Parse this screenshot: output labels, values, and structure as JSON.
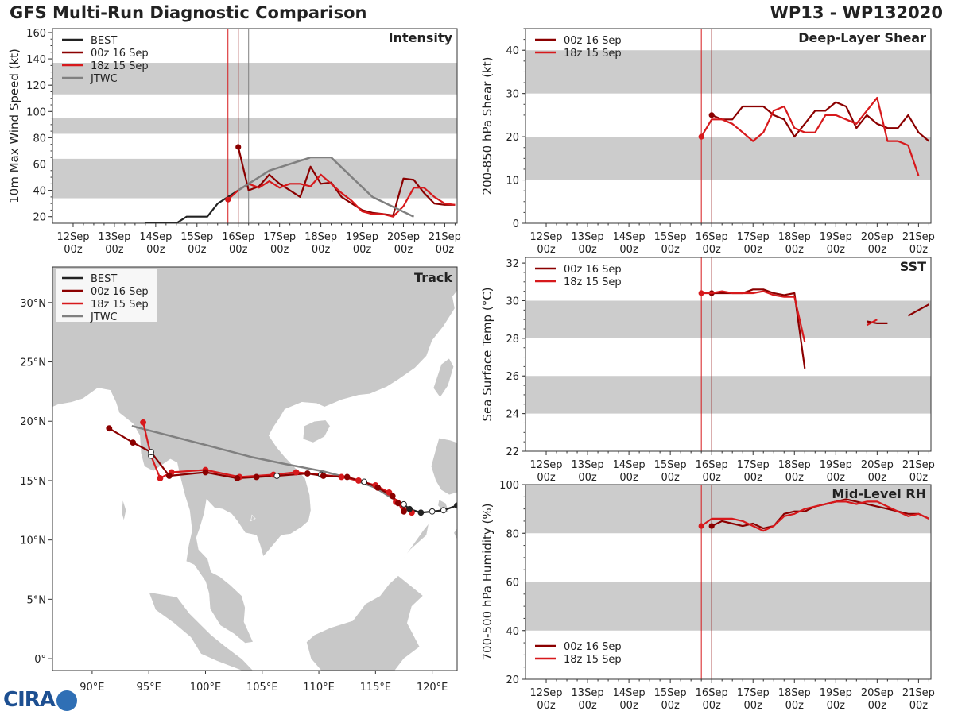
{
  "header": {
    "left_title": "GFS Multi-Run Diagnostic Comparison",
    "right_title": "WP13 - WP132020"
  },
  "logo_text": "CIRA",
  "colors": {
    "best": "#222222",
    "run00": "#8b0000",
    "run18": "#d7191c",
    "jtwc": "#808080",
    "band": "#cccccc",
    "land": "#c8c8c8"
  },
  "time_ticks": [
    "12Sep\n00z",
    "13Sep\n00z",
    "14Sep\n00z",
    "15Sep\n00z",
    "16Sep\n00z",
    "17Sep\n00z",
    "18Sep\n00z",
    "19Sep\n00z",
    "20Sep\n00z",
    "21Sep\n00z"
  ],
  "chart_data": [
    {
      "id": "intensity",
      "type": "line",
      "title": "Intensity",
      "ylabel": "10m Max Wind Speed (kt)",
      "ylim": [
        15,
        163
      ],
      "yticks": [
        20,
        40,
        60,
        80,
        100,
        120,
        140,
        160
      ],
      "xlim": [
        11.5,
        21.3
      ],
      "bands": [
        [
          34,
          64
        ],
        [
          83,
          95
        ],
        [
          113,
          137
        ]
      ],
      "vlines": [
        {
          "x": 15.75,
          "series": "run18"
        },
        {
          "x": 16.0,
          "series": "run00"
        },
        {
          "x": 16.25,
          "series": "jtwc"
        }
      ],
      "legend": [
        "BEST",
        "00z 16 Sep",
        "18z 15 Sep",
        "JTWC"
      ],
      "series": [
        {
          "key": "best",
          "name": "BEST",
          "x": [
            13.75,
            14.5,
            14.75,
            15.25,
            15.5,
            16.0
          ],
          "y": [
            15,
            15,
            20,
            20,
            30,
            40
          ]
        },
        {
          "key": "run00",
          "name": "00z 16 Sep",
          "marker": 16.0,
          "x": [
            16.0,
            16.25,
            16.5,
            16.75,
            17.0,
            17.25,
            17.5,
            17.75,
            18.0,
            18.25,
            18.5,
            18.75,
            19.0,
            19.25,
            19.5,
            19.75,
            20.0,
            20.25,
            20.5,
            20.75,
            21.0,
            21.25
          ],
          "y": [
            73,
            40,
            43,
            52,
            45,
            40,
            35,
            58,
            45,
            46,
            35,
            30,
            25,
            23,
            22,
            21,
            49,
            48,
            38,
            30,
            29,
            29
          ]
        },
        {
          "key": "run18",
          "name": "18z 15 Sep",
          "marker": 15.75,
          "x": [
            15.75,
            16.0,
            16.25,
            16.5,
            16.75,
            17.0,
            17.25,
            17.5,
            17.75,
            18.0,
            18.25,
            18.5,
            18.75,
            19.0,
            19.25,
            19.5,
            19.75,
            20.0,
            20.25,
            20.5,
            20.75,
            21.0,
            21.25
          ],
          "y": [
            33,
            40,
            45,
            42,
            47,
            42,
            45,
            45,
            43,
            52,
            45,
            38,
            32,
            24,
            22,
            22,
            20,
            28,
            42,
            42,
            35,
            30,
            29
          ]
        },
        {
          "key": "jtwc",
          "name": "JTWC",
          "x": [
            16.0,
            16.75,
            17.75,
            18.25,
            18.75,
            19.25,
            20.25
          ],
          "y": [
            40,
            55,
            65,
            65,
            50,
            35,
            20
          ]
        }
      ]
    },
    {
      "id": "shear",
      "type": "line",
      "title": "Deep-Layer Shear",
      "ylabel": "200-850 hPa Shear (kt)",
      "ylim": [
        0,
        45
      ],
      "yticks": [
        0,
        10,
        20,
        30,
        40
      ],
      "xlim": [
        11.5,
        21.3
      ],
      "bands": [
        [
          10,
          20
        ],
        [
          30,
          40
        ]
      ],
      "vlines": [
        {
          "x": 15.75,
          "series": "run18"
        },
        {
          "x": 16.0,
          "series": "run00"
        }
      ],
      "legend": [
        "00z 16 Sep",
        "18z 15 Sep"
      ],
      "series": [
        {
          "key": "run00",
          "name": "00z 16 Sep",
          "marker": 16.0,
          "x": [
            16.0,
            16.25,
            16.5,
            16.75,
            17.0,
            17.25,
            17.5,
            17.75,
            18.0,
            18.25,
            18.5,
            18.75,
            19.0,
            19.25,
            19.5,
            19.75,
            20.0,
            20.25,
            20.5,
            20.75,
            21.0,
            21.25
          ],
          "y": [
            25,
            24,
            24,
            27,
            27,
            27,
            25,
            24,
            20,
            23,
            26,
            26,
            28,
            27,
            22,
            25,
            23,
            22,
            22,
            25,
            21,
            19
          ]
        },
        {
          "key": "run18",
          "name": "18z 15 Sep",
          "marker": 15.75,
          "x": [
            15.75,
            16.0,
            16.25,
            16.5,
            16.75,
            17.0,
            17.25,
            17.5,
            17.75,
            18.0,
            18.25,
            18.5,
            18.75,
            19.0,
            19.25,
            19.5,
            19.75,
            20.0,
            20.25,
            20.5,
            20.75,
            21.0,
            21.25
          ],
          "y": [
            20,
            24,
            24,
            23,
            21,
            19,
            21,
            26,
            27,
            22,
            21,
            21,
            25,
            25,
            24,
            23,
            26,
            29,
            19,
            19,
            18,
            11,
            null
          ]
        }
      ]
    },
    {
      "id": "sst",
      "type": "line",
      "title": "SST",
      "ylabel": "Sea Surface Temp (°C)",
      "ylim": [
        22,
        32.3
      ],
      "yticks": [
        22,
        24,
        26,
        28,
        30,
        32
      ],
      "xlim": [
        11.5,
        21.3
      ],
      "bands": [
        [
          24,
          26
        ],
        [
          28,
          30
        ]
      ],
      "vlines": [
        {
          "x": 15.75,
          "series": "run18"
        },
        {
          "x": 16.0,
          "series": "run00"
        }
      ],
      "legend": [
        "00z 16 Sep",
        "18z 15 Sep"
      ],
      "series": [
        {
          "key": "run00",
          "name": "00z 16 Sep",
          "marker": 16.0,
          "segments": [
            {
              "x": [
                16.0,
                16.25,
                16.5,
                16.75,
                17.0,
                17.25,
                17.5,
                17.75,
                18.0,
                18.25
              ],
              "y": [
                30.4,
                30.4,
                30.4,
                30.4,
                30.6,
                30.6,
                30.4,
                30.3,
                30.4,
                26.4
              ]
            },
            {
              "x": [
                19.75,
                20.0,
                20.25
              ],
              "y": [
                28.9,
                28.8,
                28.8
              ]
            },
            {
              "x": [
                20.75,
                21.0,
                21.25
              ],
              "y": [
                29.2,
                29.5,
                29.8
              ]
            }
          ]
        },
        {
          "key": "run18",
          "name": "18z 15 Sep",
          "marker": 15.75,
          "segments": [
            {
              "x": [
                15.75,
                16.0,
                16.25,
                16.5,
                16.75,
                17.0,
                17.25,
                17.5,
                17.75,
                18.0,
                18.25
              ],
              "y": [
                30.4,
                30.4,
                30.5,
                30.4,
                30.4,
                30.4,
                30.5,
                30.3,
                30.2,
                30.2,
                27.8
              ]
            },
            {
              "x": [
                19.75,
                20.0
              ],
              "y": [
                28.7,
                29.0
              ]
            }
          ]
        }
      ]
    },
    {
      "id": "rh",
      "type": "line",
      "title": "Mid-Level RH",
      "ylabel": "700-500 hPa Humidity (%)",
      "ylim": [
        20,
        100
      ],
      "yticks": [
        20,
        40,
        60,
        80,
        100
      ],
      "xlim": [
        11.5,
        21.3
      ],
      "bands": [
        [
          40,
          60
        ],
        [
          80,
          100
        ]
      ],
      "vlines": [
        {
          "x": 15.75,
          "series": "run18"
        },
        {
          "x": 16.0,
          "series": "run00"
        }
      ],
      "legend": [
        "00z 16 Sep",
        "18z 15 Sep"
      ],
      "legend_position": "bottom-left",
      "series": [
        {
          "key": "run00",
          "name": "00z 16 Sep",
          "marker": 16.0,
          "x": [
            16.0,
            16.25,
            16.5,
            16.75,
            17.0,
            17.25,
            17.5,
            17.75,
            18.0,
            18.25,
            18.5,
            18.75,
            19.0,
            19.25,
            19.5,
            19.75,
            20.0,
            20.25,
            20.5,
            20.75,
            21.0,
            21.25
          ],
          "y": [
            83,
            85,
            84,
            83,
            84,
            82,
            83,
            88,
            89,
            89,
            91,
            92,
            93,
            94,
            93,
            92,
            91,
            90,
            89,
            88,
            88,
            86
          ]
        },
        {
          "key": "run18",
          "name": "18z 15 Sep",
          "marker": 15.75,
          "x": [
            15.75,
            16.0,
            16.25,
            16.5,
            16.75,
            17.0,
            17.25,
            17.5,
            17.75,
            18.0,
            18.25,
            18.5,
            18.75,
            19.0,
            19.25,
            19.5,
            19.75,
            20.0,
            20.25,
            20.5,
            20.75,
            21.0,
            21.25
          ],
          "y": [
            83,
            86,
            86,
            86,
            85,
            83,
            81,
            83,
            87,
            88,
            90,
            91,
            92,
            93,
            93,
            92,
            93,
            93,
            91,
            89,
            87,
            88,
            86
          ]
        }
      ]
    },
    {
      "id": "track",
      "type": "scatter",
      "title": "Track",
      "xlim": [
        86.5,
        122.2
      ],
      "ylim": [
        -1,
        33
      ],
      "xticks": [
        90,
        95,
        100,
        105,
        110,
        115,
        120
      ],
      "xtick_labels": [
        "90°E",
        "95°E",
        "100°E",
        "105°E",
        "110°E",
        "115°E",
        "120°E"
      ],
      "yticks": [
        0,
        5,
        10,
        15,
        20,
        25,
        30
      ],
      "ytick_labels": [
        "0°",
        "5°N",
        "10°N",
        "15°N",
        "20°N",
        "25°N",
        "30°N"
      ],
      "legend": [
        "BEST",
        "00z 16 Sep",
        "18z 15 Sep",
        "JTWC"
      ],
      "series": [
        {
          "key": "best",
          "name": "BEST",
          "lon": [
            122.2,
            121.0,
            120.0,
            119.0,
            118.0,
            117.5
          ],
          "lat": [
            12.9,
            12.5,
            12.4,
            12.3,
            12.6,
            13.0
          ],
          "open": [
            false,
            true,
            true,
            false,
            false,
            true
          ]
        },
        {
          "key": "run00",
          "name": "00z 16 Sep",
          "lon": [
            117.5,
            117.0,
            116.5,
            115.2,
            114.0,
            112.5,
            110.4,
            109.0,
            106.3,
            104.5,
            102.8,
            100.0,
            96.8,
            95.2,
            93.6,
            91.5
          ],
          "lat": [
            12.4,
            13.1,
            13.7,
            14.4,
            14.9,
            15.3,
            15.4,
            15.6,
            15.4,
            15.3,
            15.2,
            15.7,
            15.4,
            17.4,
            18.2,
            19.4
          ],
          "open": [
            false,
            false,
            false,
            false,
            true,
            false,
            false,
            false,
            true,
            false,
            false,
            false,
            false,
            true,
            false,
            false
          ]
        },
        {
          "key": "run18",
          "name": "18z 15 Sep",
          "lon": [
            118.2,
            117.4,
            116.8,
            116.2,
            115.0,
            113.5,
            112.0,
            110.2,
            108.0,
            106.0,
            103.0,
            100.0,
            97.0,
            96.0,
            95.2,
            94.5
          ],
          "lat": [
            12.3,
            12.8,
            13.2,
            14.0,
            14.6,
            15.0,
            15.3,
            15.5,
            15.7,
            15.5,
            15.3,
            15.9,
            15.7,
            15.2,
            17.1,
            19.9
          ],
          "open": [
            false,
            false,
            false,
            false,
            false,
            false,
            false,
            true,
            false,
            false,
            false,
            false,
            false,
            false,
            true,
            false
          ]
        },
        {
          "key": "jtwc",
          "name": "JTWC",
          "lon": [
            117.5,
            116.5,
            115.0,
            112.7,
            110.3,
            107.0,
            104.0,
            100.0,
            93.5
          ],
          "lat": [
            13.0,
            13.5,
            14.4,
            15.2,
            15.8,
            16.4,
            17.0,
            18.0,
            19.6
          ]
        }
      ]
    }
  ]
}
